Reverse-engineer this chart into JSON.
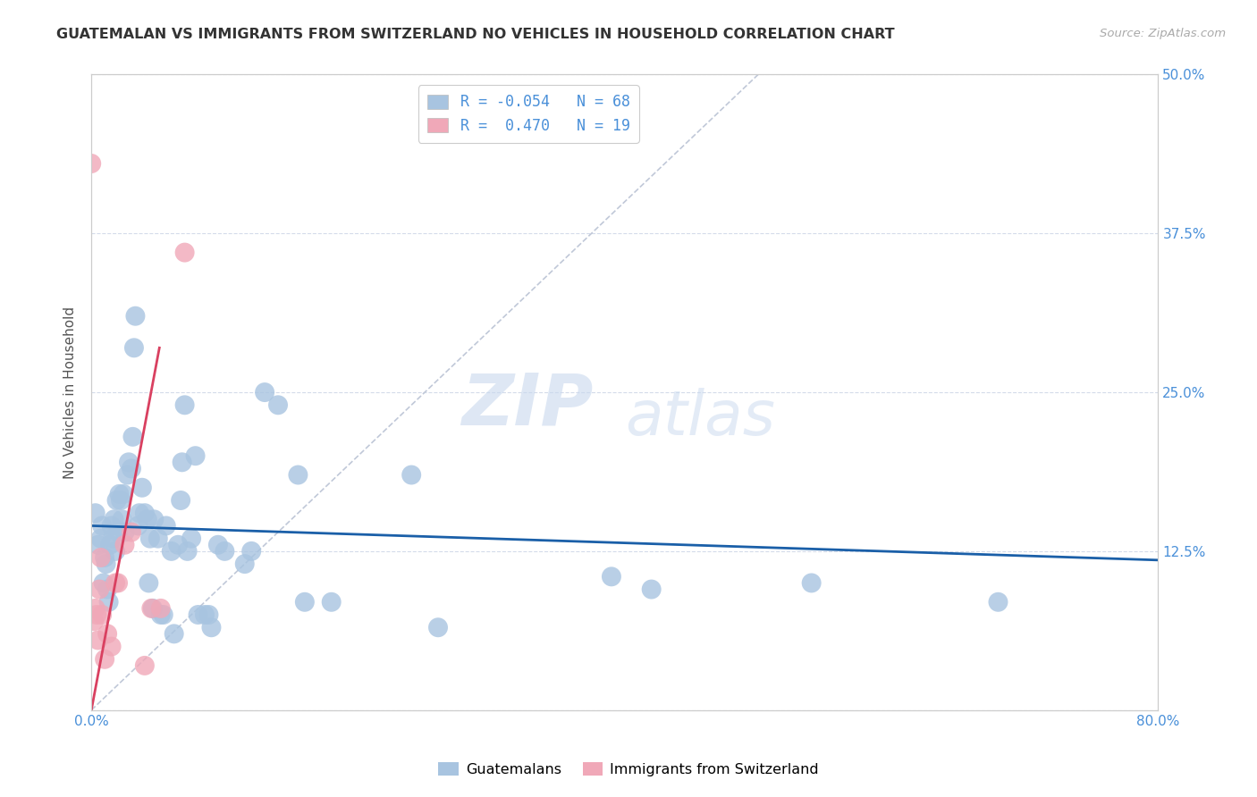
{
  "title": "GUATEMALAN VS IMMIGRANTS FROM SWITZERLAND NO VEHICLES IN HOUSEHOLD CORRELATION CHART",
  "source": "Source: ZipAtlas.com",
  "ylabel": "No Vehicles in Household",
  "xlim": [
    0,
    0.8
  ],
  "ylim": [
    0,
    0.5
  ],
  "xticks": [
    0.0,
    0.2,
    0.4,
    0.6,
    0.8
  ],
  "yticks": [
    0.0,
    0.125,
    0.25,
    0.375,
    0.5
  ],
  "blue_color": "#a8c4e0",
  "pink_color": "#f0a8b8",
  "blue_line_color": "#1a5fa8",
  "pink_line_color": "#d94060",
  "blue_r": -0.054,
  "blue_n": 68,
  "pink_r": 0.47,
  "pink_n": 19,
  "legend1_label": "Guatemalans",
  "legend2_label": "Immigrants from Switzerland",
  "watermark_zip": "ZIP",
  "watermark_atlas": "atlas",
  "blue_x": [
    0.003,
    0.005,
    0.007,
    0.008,
    0.009,
    0.01,
    0.011,
    0.012,
    0.013,
    0.014,
    0.015,
    0.016,
    0.017,
    0.018,
    0.019,
    0.02,
    0.021,
    0.022,
    0.023,
    0.024,
    0.025,
    0.027,
    0.028,
    0.03,
    0.031,
    0.032,
    0.033,
    0.035,
    0.036,
    0.038,
    0.04,
    0.042,
    0.043,
    0.044,
    0.046,
    0.047,
    0.05,
    0.052,
    0.054,
    0.056,
    0.06,
    0.062,
    0.065,
    0.067,
    0.068,
    0.07,
    0.072,
    0.075,
    0.078,
    0.08,
    0.085,
    0.088,
    0.09,
    0.095,
    0.1,
    0.115,
    0.12,
    0.13,
    0.14,
    0.155,
    0.16,
    0.18,
    0.24,
    0.26,
    0.39,
    0.42,
    0.54,
    0.68
  ],
  "blue_y": [
    0.155,
    0.13,
    0.135,
    0.145,
    0.1,
    0.12,
    0.115,
    0.095,
    0.085,
    0.13,
    0.145,
    0.135,
    0.15,
    0.125,
    0.165,
    0.14,
    0.17,
    0.165,
    0.15,
    0.17,
    0.14,
    0.185,
    0.195,
    0.19,
    0.215,
    0.285,
    0.31,
    0.145,
    0.155,
    0.175,
    0.155,
    0.15,
    0.1,
    0.135,
    0.08,
    0.15,
    0.135,
    0.075,
    0.075,
    0.145,
    0.125,
    0.06,
    0.13,
    0.165,
    0.195,
    0.24,
    0.125,
    0.135,
    0.2,
    0.075,
    0.075,
    0.075,
    0.065,
    0.13,
    0.125,
    0.115,
    0.125,
    0.25,
    0.24,
    0.185,
    0.085,
    0.085,
    0.185,
    0.065,
    0.105,
    0.095,
    0.1,
    0.085
  ],
  "pink_x": [
    0.0,
    0.002,
    0.003,
    0.004,
    0.005,
    0.006,
    0.007,
    0.008,
    0.01,
    0.012,
    0.015,
    0.018,
    0.02,
    0.025,
    0.03,
    0.04,
    0.045,
    0.052,
    0.07
  ],
  "pink_y": [
    0.43,
    0.07,
    0.08,
    0.075,
    0.055,
    0.095,
    0.12,
    0.075,
    0.04,
    0.06,
    0.05,
    0.1,
    0.1,
    0.13,
    0.14,
    0.035,
    0.08,
    0.08,
    0.36
  ],
  "blue_line_x": [
    0.0,
    0.8
  ],
  "blue_line_y_start": 0.145,
  "blue_line_y_end": 0.118,
  "pink_line_x": [
    0.0,
    0.051
  ],
  "pink_line_y_start": 0.0,
  "pink_line_y_end": 0.285,
  "diag_color": "#c0c8d8"
}
